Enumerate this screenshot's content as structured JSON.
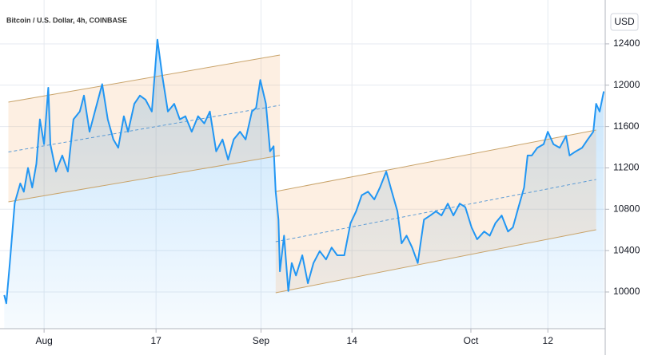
{
  "chart_data": {
    "type": "line",
    "title": "Bitcoin / U.S. Dollar, 4h, COINBASE",
    "y_axis_label": "USD",
    "color": "#2196f3",
    "x": [
      -5.7,
      -5.4,
      -4.9,
      -4.2,
      -3.4,
      -2.9,
      -2.3,
      -1.7,
      -1.1,
      -0.6,
      0,
      0.6,
      0.9,
      1.7,
      2.6,
      3.4,
      4.2,
      5.1,
      5.7,
      6.5,
      7.4,
      8.3,
      9.1,
      9.9,
      10.6,
      11.4,
      12.0,
      12.9,
      13.7,
      14.5,
      15.4,
      16.2,
      16.9,
      17.7,
      18.6,
      19.4,
      20.2,
      21.1,
      22.0,
      22.9,
      23.7,
      24.6,
      25.5,
      26.3,
      27.1,
      28.0,
      28.8,
      29.7,
      30.3,
      30.9,
      31.7,
      32.3,
      32.8,
      33.1,
      33.5,
      33.7,
      34.3,
      34.9,
      35.4,
      36.0,
      36.9,
      37.7,
      38.5,
      39.4,
      40.3,
      41.1,
      41.9,
      42.9,
      43.8,
      44.6,
      45.4,
      46.3,
      47.2,
      48.0,
      48.9,
      49.7,
      50.5,
      51.1,
      51.8,
      52.6,
      53.4,
      54.3,
      55.2,
      56.0,
      56.8,
      57.7,
      58.5,
      59.4,
      60.2,
      61.1,
      61.9,
      62.9,
      63.7,
      64.5,
      65.4,
      66.3,
      67.0,
      67.8,
      68.6,
      69.1,
      69.7,
      70.5,
      71.4,
      72.0,
      72.8,
      73.7,
      74.6,
      75.1,
      76.0,
      76.9,
      77.7,
      78.5,
      78.9,
      79.4,
      80.0
    ],
    "values": [
      9970,
      9890,
      10280,
      10860,
      11050,
      10970,
      11200,
      11010,
      11240,
      11670,
      11430,
      11975,
      11430,
      11165,
      11320,
      11165,
      11670,
      11745,
      11900,
      11550,
      11780,
      12010,
      11670,
      11475,
      11395,
      11700,
      11550,
      11820,
      11900,
      11860,
      11745,
      12440,
      12090,
      11745,
      11820,
      11670,
      11700,
      11550,
      11700,
      11630,
      11745,
      11360,
      11475,
      11280,
      11475,
      11550,
      11475,
      11745,
      11780,
      12050,
      11820,
      11360,
      11410,
      10970,
      10700,
      10200,
      10545,
      10010,
      10280,
      10160,
      10355,
      10085,
      10280,
      10395,
      10315,
      10430,
      10355,
      10355,
      10665,
      10780,
      10935,
      10970,
      10895,
      11010,
      11165,
      10970,
      10780,
      10470,
      10545,
      10430,
      10280,
      10700,
      10740,
      10780,
      10740,
      10855,
      10740,
      10855,
      10820,
      10625,
      10510,
      10585,
      10545,
      10665,
      10740,
      10585,
      10625,
      10820,
      11010,
      11320,
      11320,
      11395,
      11430,
      11550,
      11430,
      11395,
      11510,
      11320,
      11360,
      11395,
      11475,
      11550,
      11820,
      11745,
      11940
    ],
    "channels": [
      {
        "x": [
          -5.1,
          33.7
        ],
        "upper": [
          11836,
          12292
        ],
        "middle": [
          11354,
          11806
        ],
        "lower": [
          10872,
          11319
        ]
      },
      {
        "x": [
          33.1,
          78.9
        ],
        "upper": [
          10972,
          11566
        ],
        "middle": [
          10486,
          11088
        ],
        "lower": [
          9992,
          10602
        ]
      }
    ],
    "xlim": [
      -6.3,
      80.2
    ],
    "xticks": [
      {
        "value": 0,
        "label": "Aug"
      },
      {
        "value": 16,
        "label": "17"
      },
      {
        "value": 31,
        "label": "Sep"
      },
      {
        "value": 44,
        "label": "14"
      },
      {
        "value": 61,
        "label": "Oct"
      },
      {
        "value": 72,
        "label": "12"
      }
    ],
    "ylim": [
      9645,
      12824
    ],
    "yticks": [
      10000,
      10400,
      10800,
      11200,
      11600,
      12000,
      12400
    ],
    "grid": true
  }
}
